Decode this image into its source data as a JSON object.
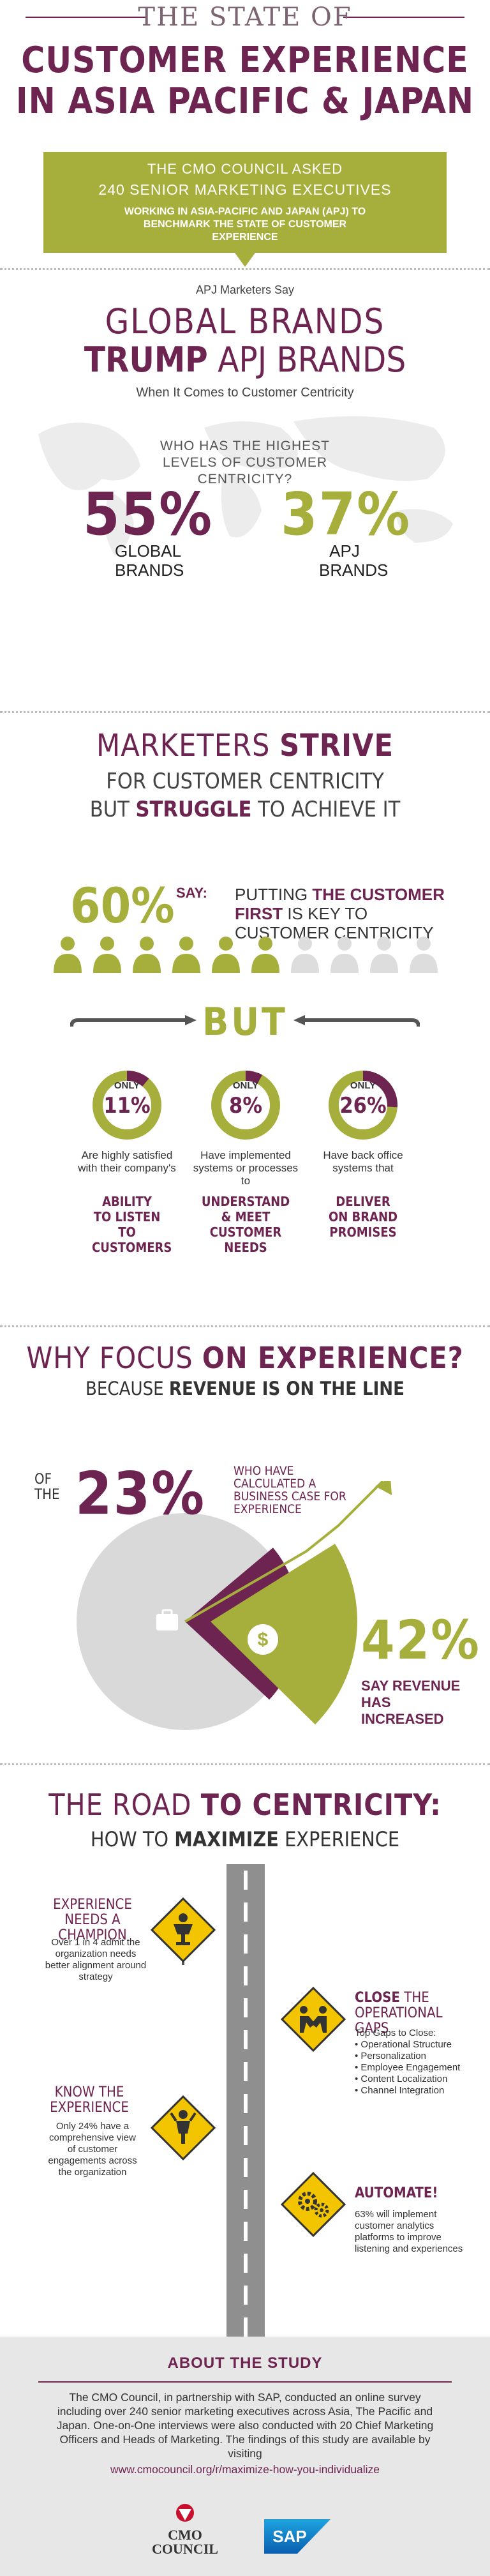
{
  "header": {
    "state_of": "THE STATE OF",
    "title_line1": "CUSTOMER EXPERIENCE",
    "title_line2": "IN ASIA PACIFIC & JAPAN",
    "banner_line1": "THE CMO COUNCIL ASKED",
    "banner_line2": "240  SENIOR MARKETING EXECUTIVES",
    "banner_line3": "WORKING IN ASIA-PACIFIC AND JAPAN (APJ) TO BENCHMARK THE STATE OF CUSTOMER EXPERIENCE"
  },
  "global_vs_apj": {
    "intro": "APJ Marketers Say",
    "headline1": "GLOBAL BRANDS",
    "headline2_bold": "TRUMP",
    "headline2_rest": " APJ BRANDS",
    "subhead": "When It Comes to Customer Centricity",
    "question": "WHO HAS THE HIGHEST LEVELS OF CUSTOMER CENTRICITY?",
    "global_pct": "55%",
    "global_label": "GLOBAL BRANDS",
    "apj_pct": "37%",
    "apj_label": "APJ BRANDS"
  },
  "strive": {
    "h1_a": "MARKETERS ",
    "h1_b": "STRIVE",
    "h2": "FOR CUSTOMER CENTRICITY",
    "h3_a": "BUT ",
    "h3_b": "STRUGGLE",
    "h3_c": " TO ACHIEVE IT",
    "pct": "60%",
    "say": "SAY:",
    "putting_a": "PUTTING ",
    "putting_b": "THE CUSTOMER FIRST",
    "putting_c": " IS KEY TO CUSTOMER CENTRICITY",
    "people_filled": 6,
    "people_total": 10,
    "but": "BUT",
    "stats": [
      {
        "only": "ONLY",
        "pct": "11%",
        "value": 11,
        "text": "Are highly satisfied with their company's",
        "highlight": "ABILITY TO LISTEN TO CUSTOMERS"
      },
      {
        "only": "ONLY",
        "pct": "8%",
        "value": 8,
        "text": "Have implemented systems or processes to",
        "highlight": "UNDERSTAND & MEET CUSTOMER NEEDS"
      },
      {
        "only": "ONLY",
        "pct": "26%",
        "value": 26,
        "text": "Have back office systems that",
        "highlight": "DELIVER ON BRAND PROMISES"
      }
    ]
  },
  "why": {
    "h1_a": "WHY FOCUS ",
    "h1_b": "ON EXPERIENCE?",
    "h2_a": "BECAUSE ",
    "h2_b": "REVENUE IS ON THE LINE",
    "of_the": "OF THE",
    "pct23": "23%",
    "who": "WHO HAVE CALCULATED A BUSINESS CASE FOR EXPERIENCE",
    "pct42": "42%",
    "say_rev": "SAY REVENUE HAS INCREASED",
    "chart_values": {
      "business_case_pct": 23,
      "revenue_increased_pct": 42
    }
  },
  "road": {
    "h1_a": "THE ROAD ",
    "h1_b": "TO CENTRICITY:",
    "h2_a": "HOW TO ",
    "h2_b": "MAXIMIZE",
    "h2_c": " EXPERIENCE",
    "champion_title": "EXPERIENCE NEEDS A CHAMPION",
    "champion_body": "Over 1 in 4 admit the organization needs better alignment around strategy",
    "close_title_a": "CLOSE",
    "close_title_b": " THE OPERATIONAL GAPS",
    "close_intro": "Top Gaps to Close:",
    "close_items": [
      "• Operational Structure",
      "• Personalization",
      "• Employee Engagement",
      "• Content Localization",
      "• Channel Integration"
    ],
    "know_title": "KNOW THE EXPERIENCE",
    "know_body": "Only 24% have a comprehensive view of customer engagements across the organization",
    "automate_title": "AUTOMATE!",
    "automate_body": "63% will implement customer analytics platforms to improve listening and experiences"
  },
  "about": {
    "heading": "ABOUT THE STUDY",
    "body": "The CMO Council, in partnership with SAP, conducted an online survey including over 240 senior marketing executives across Asia, The Pacific and Japan. One-on-One interviews were also conducted with 20 Chief Marketing Officers and Heads of Marketing. The findings of this study are available by visiting",
    "url": "www.cmocouncil.org/r/maximize-how-you-individualize",
    "cmo_logo_text": "CMO COUNCIL",
    "sap_logo_text": "SAP"
  },
  "colors": {
    "plum": "#6d2450",
    "green": "#a6ae3c",
    "grey": "#d9d9d9"
  }
}
